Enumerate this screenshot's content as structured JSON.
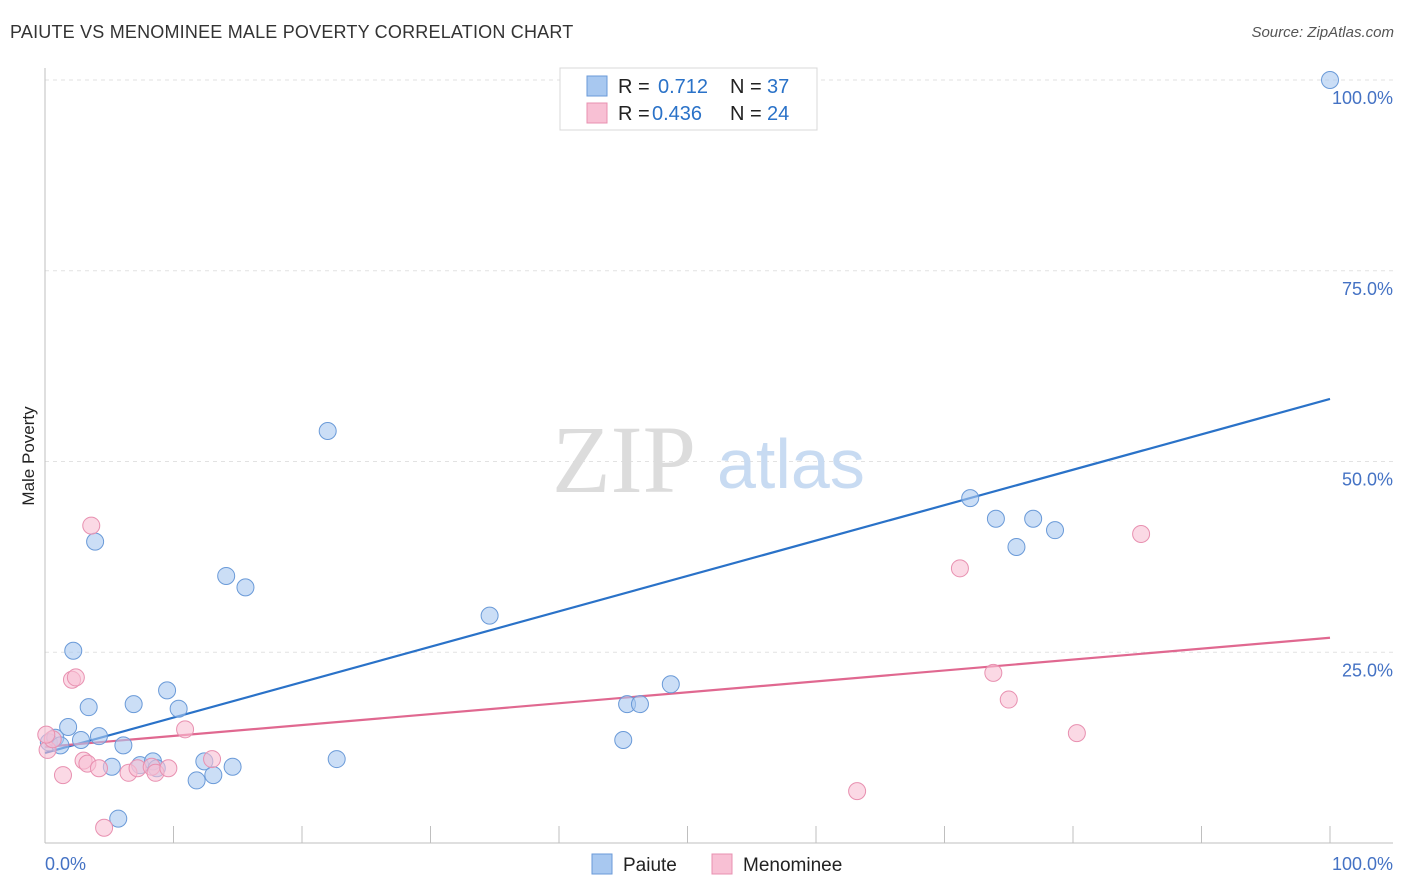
{
  "title": "PAIUTE VS MENOMINEE MALE POVERTY CORRELATION CHART",
  "source": "Source: ZipAtlas.com",
  "watermark": {
    "zip": "ZIP",
    "atlas": "atlas"
  },
  "legend_top": [
    {
      "r_label": "R = ",
      "r_value": "0.712",
      "n_label": "N = ",
      "n_value": "37",
      "color": "#a8c8f0",
      "stroke": "#6a9ad8"
    },
    {
      "r_label": "R = ",
      "r_value": "0.436",
      "n_label": "N = ",
      "n_value": "24",
      "color": "#f8c0d4",
      "stroke": "#e890b0"
    }
  ],
  "chart_data": {
    "type": "scatter",
    "xlabel": "",
    "ylabel": "Male Poverty",
    "xlim": [
      0,
      100
    ],
    "ylim": [
      0,
      100
    ],
    "x_tick_labels": [
      "0.0%",
      "100.0%"
    ],
    "y_tick_labels": [
      "100.0%",
      "75.0%",
      "50.0%",
      "25.0%"
    ],
    "y_tick_values": [
      100,
      75,
      50,
      25
    ],
    "series": [
      {
        "name": "Paiute",
        "color": "#a8c8f0",
        "stroke": "#6a9ad8",
        "line_color": "#2a72c8",
        "trend": [
          [
            0,
            11.8
          ],
          [
            100,
            58.2
          ]
        ],
        "points": [
          [
            0.3,
            13.2
          ],
          [
            0.8,
            13.8
          ],
          [
            1.2,
            12.8
          ],
          [
            1.8,
            15.2
          ],
          [
            2.2,
            25.2
          ],
          [
            2.8,
            13.5
          ],
          [
            3.4,
            17.8
          ],
          [
            3.9,
            39.5
          ],
          [
            4.2,
            14.0
          ],
          [
            5.2,
            10.0
          ],
          [
            5.7,
            3.2
          ],
          [
            6.1,
            12.8
          ],
          [
            6.9,
            18.2
          ],
          [
            7.4,
            10.2
          ],
          [
            8.4,
            10.7
          ],
          [
            8.7,
            9.8
          ],
          [
            9.5,
            20.0
          ],
          [
            10.4,
            17.6
          ],
          [
            11.8,
            8.2
          ],
          [
            12.4,
            10.7
          ],
          [
            13.1,
            8.9
          ],
          [
            14.1,
            35.0
          ],
          [
            14.6,
            10.0
          ],
          [
            15.6,
            33.5
          ],
          [
            22.0,
            54.0
          ],
          [
            22.7,
            11.0
          ],
          [
            34.6,
            29.8
          ],
          [
            45.0,
            13.5
          ],
          [
            45.3,
            18.2
          ],
          [
            46.3,
            18.2
          ],
          [
            48.7,
            20.8
          ],
          [
            72.0,
            45.2
          ],
          [
            74.0,
            42.5
          ],
          [
            75.6,
            38.8
          ],
          [
            76.9,
            42.5
          ],
          [
            78.6,
            41.0
          ],
          [
            100.0,
            100.0
          ]
        ]
      },
      {
        "name": "Menominee",
        "color": "#f8c0d4",
        "stroke": "#e890b0",
        "line_color": "#e06890",
        "trend": [
          [
            0,
            12.6
          ],
          [
            100,
            26.9
          ]
        ],
        "points": [
          [
            0.2,
            12.2
          ],
          [
            0.6,
            13.6
          ],
          [
            1.4,
            8.9
          ],
          [
            2.1,
            21.4
          ],
          [
            2.4,
            21.7
          ],
          [
            3.0,
            10.8
          ],
          [
            3.3,
            10.4
          ],
          [
            3.6,
            41.6
          ],
          [
            4.2,
            9.8
          ],
          [
            4.6,
            2.0
          ],
          [
            6.5,
            9.2
          ],
          [
            7.2,
            9.8
          ],
          [
            8.3,
            10.0
          ],
          [
            8.6,
            9.2
          ],
          [
            9.6,
            9.8
          ],
          [
            10.9,
            14.9
          ],
          [
            13.0,
            11.0
          ],
          [
            63.2,
            6.8
          ],
          [
            71.2,
            36.0
          ],
          [
            73.8,
            22.3
          ],
          [
            75.0,
            18.8
          ],
          [
            80.3,
            14.4
          ],
          [
            85.3,
            40.5
          ],
          [
            0.1,
            14.2
          ]
        ]
      }
    ]
  }
}
